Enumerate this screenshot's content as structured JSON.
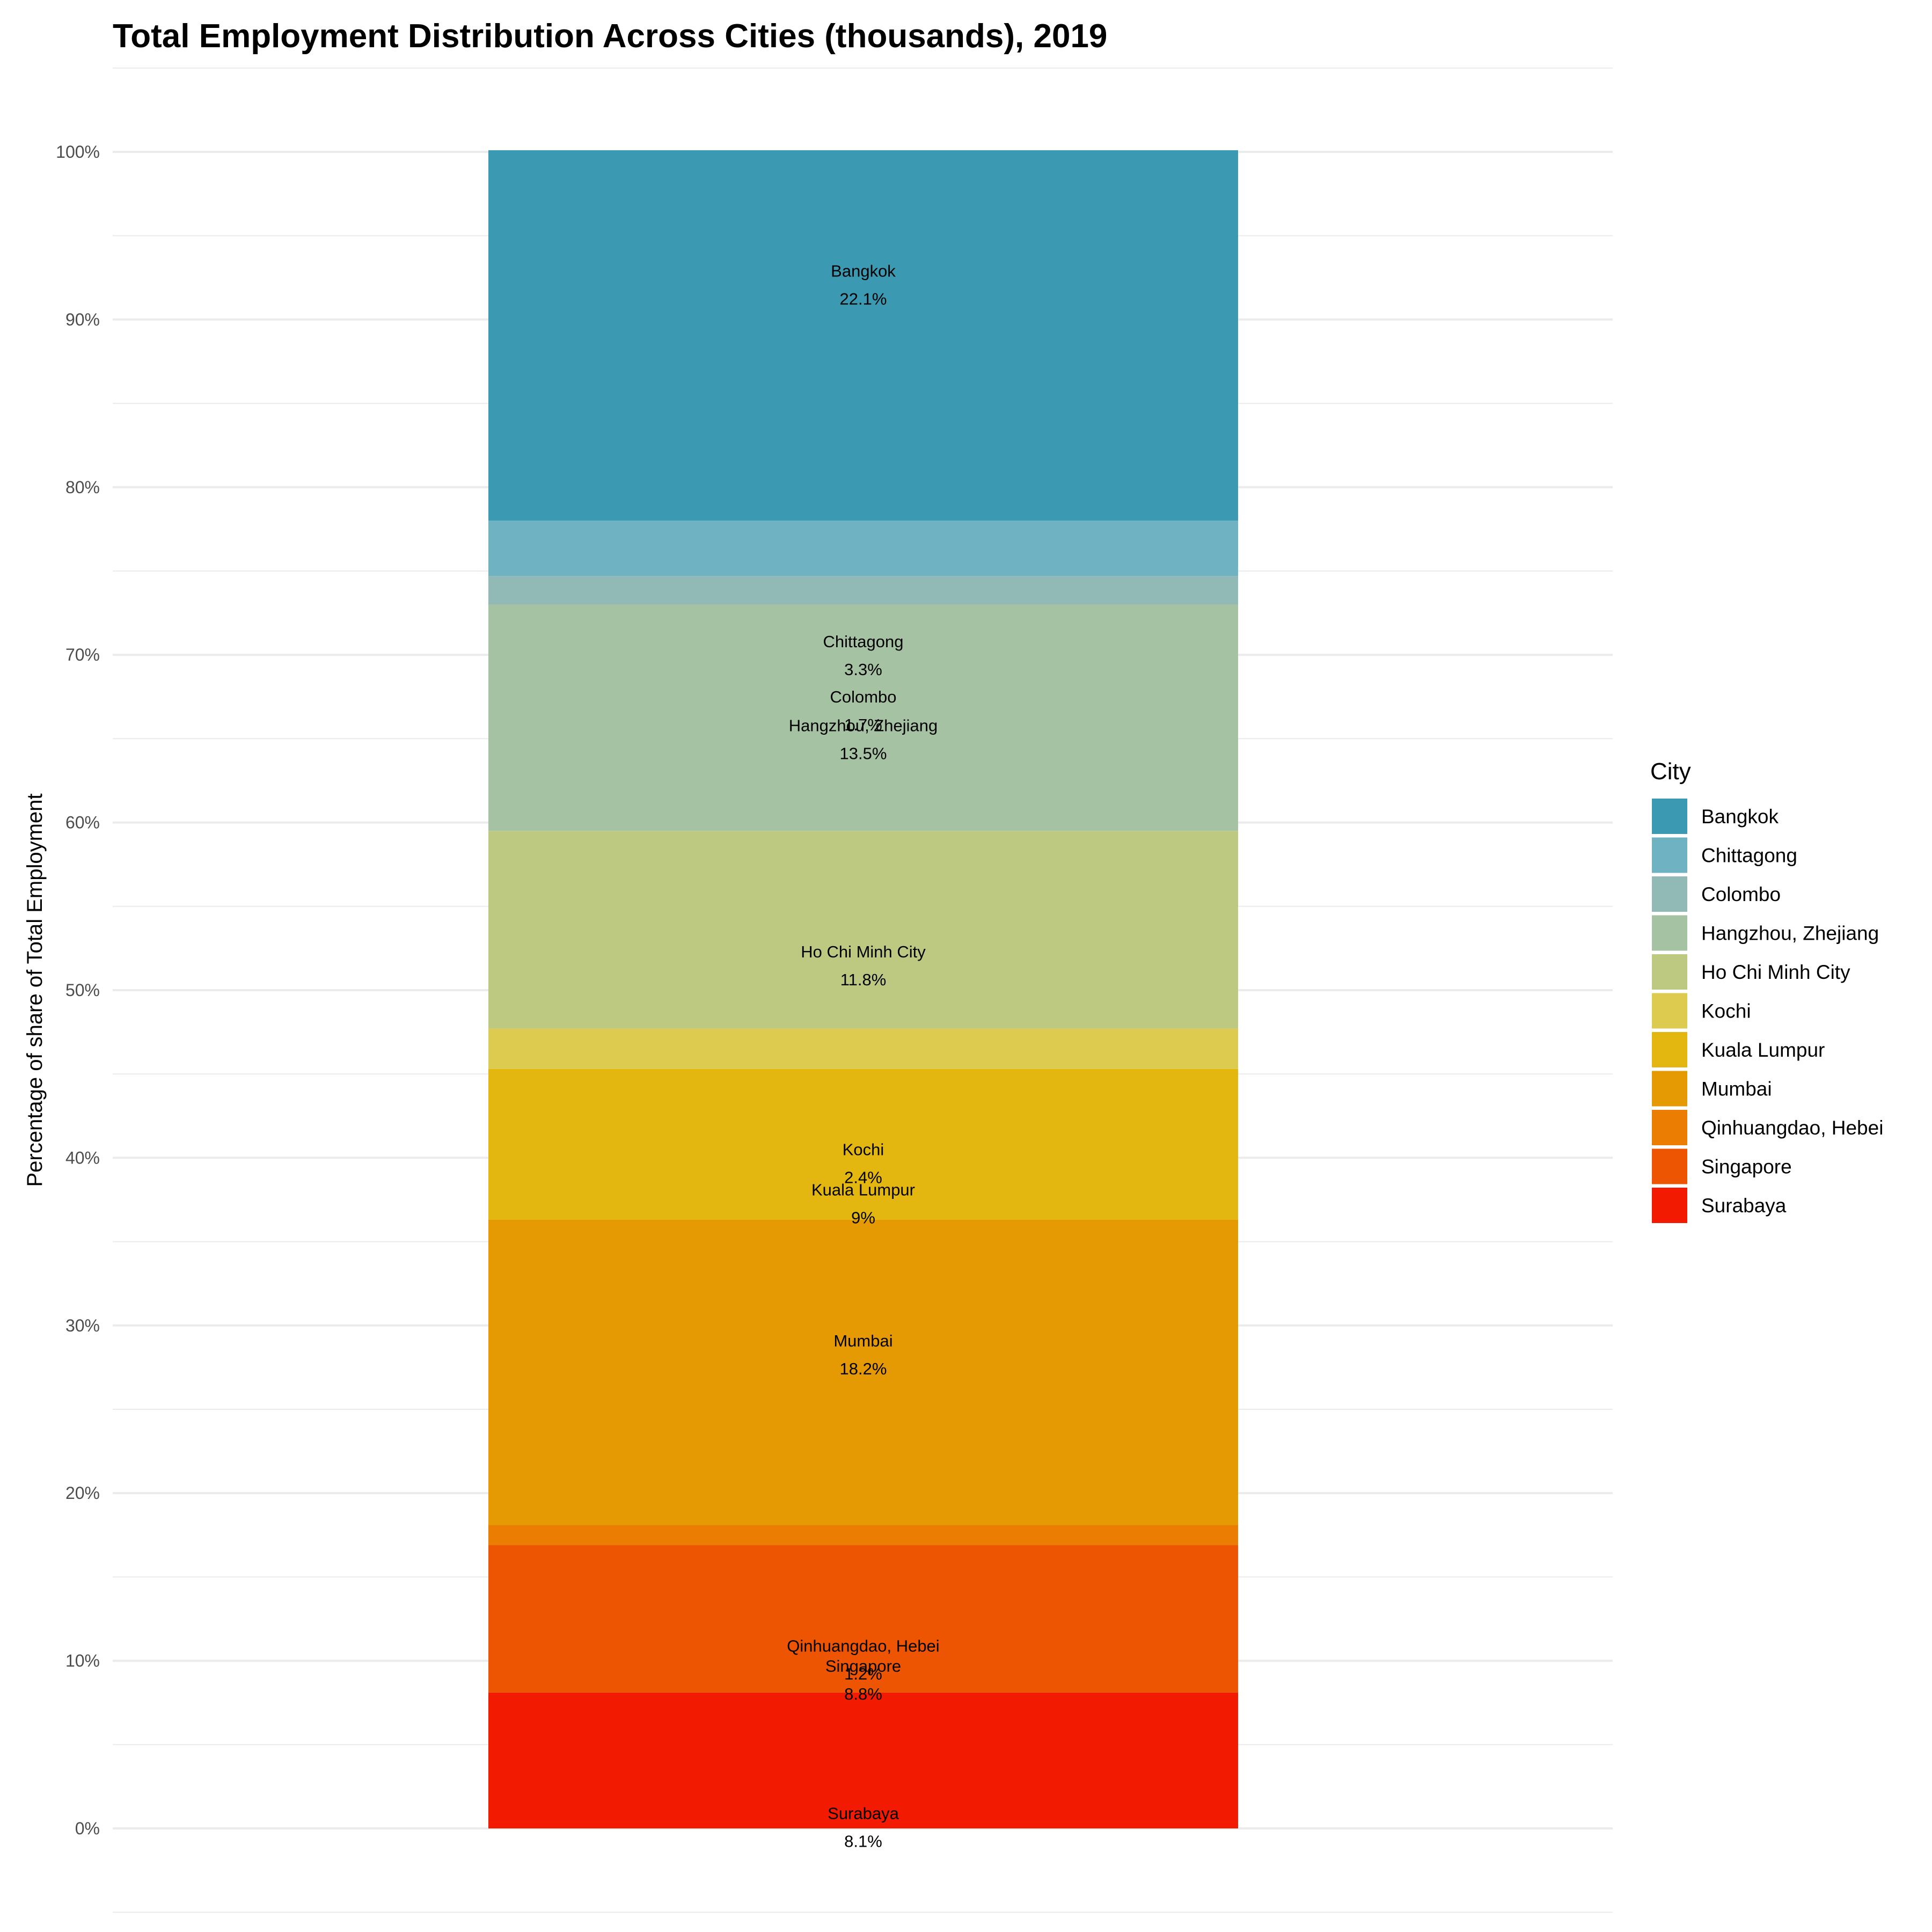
{
  "chart_data": {
    "type": "bar",
    "stacked": true,
    "title": "Total Employment Distribution Across Cities (thousands), 2019",
    "xlabel": "",
    "ylabel": "Percentage of share of Total Employment",
    "ylim": [
      0,
      100
    ],
    "y_ticks": [
      "0%",
      "10%",
      "20%",
      "30%",
      "40%",
      "50%",
      "60%",
      "70%",
      "80%",
      "90%",
      "100%"
    ],
    "grid": true,
    "legend": {
      "title": "City",
      "position": "right"
    },
    "series": [
      {
        "name": "Bangkok",
        "value": 22.1,
        "label": "22.1%",
        "color": "#3B9AB2"
      },
      {
        "name": "Chittagong",
        "value": 3.3,
        "label": "3.3%",
        "color": "#6FB2C1"
      },
      {
        "name": "Colombo",
        "value": 1.7,
        "label": "1.7%",
        "color": "#91BAB6"
      },
      {
        "name": "Hangzhou, Zhejiang",
        "value": 13.5,
        "label": "13.5%",
        "color": "#A5C2A3"
      },
      {
        "name": "Ho Chi Minh City",
        "value": 11.8,
        "label": "11.8%",
        "color": "#BDC881"
      },
      {
        "name": "Kochi",
        "value": 2.4,
        "label": "2.4%",
        "color": "#DCCB4E"
      },
      {
        "name": "Kuala Lumpur",
        "value": 9.0,
        "label": "9%",
        "color": "#E3B710"
      },
      {
        "name": "Mumbai",
        "value": 18.2,
        "label": "18.2%",
        "color": "#E59A04"
      },
      {
        "name": "Qinhuangdao, Hebei",
        "value": 1.2,
        "label": "1.2%",
        "color": "#EB7D02"
      },
      {
        "name": "Singapore",
        "value": 8.8,
        "label": "8.8%",
        "color": "#EE5503"
      },
      {
        "name": "Surabaya",
        "value": 8.1,
        "label": "8.1%",
        "color": "#F21A00"
      }
    ]
  }
}
